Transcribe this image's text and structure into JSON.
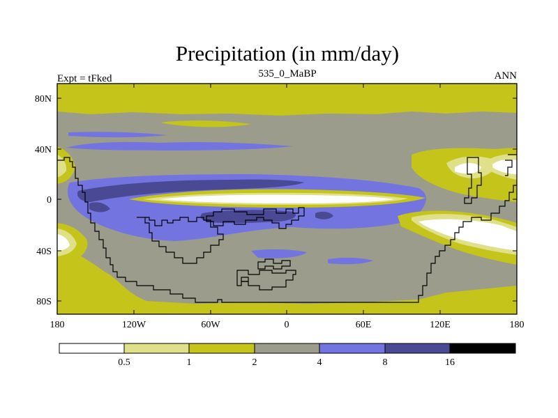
{
  "title": "Precipitation (in mm/day)",
  "left_label": "Expt = tFked",
  "center_label": "535_0_MaBP",
  "right_label": "ANN",
  "y_ticks": [
    "80N",
    "40N",
    "0",
    "40S",
    "80S"
  ],
  "x_ticks": [
    "180",
    "120W",
    "60W",
    "0",
    "60E",
    "120E",
    "180"
  ],
  "colorbar": {
    "labels": [
      "0.5",
      "1",
      "2",
      "4",
      "8",
      "16"
    ],
    "colors": [
      "#ffffff",
      "#e0e08a",
      "#c4c41a",
      "#9c9c8c",
      "#7474e0",
      "#4a4a94",
      "#000000"
    ]
  },
  "colors": {
    "dry": "#c4c41a",
    "light": "#e0e08a",
    "mid": "#9c9c8c",
    "wet": "#7474e0",
    "very_wet": "#4a4a94",
    "none": "#ffffff",
    "coast": "#000000"
  }
}
